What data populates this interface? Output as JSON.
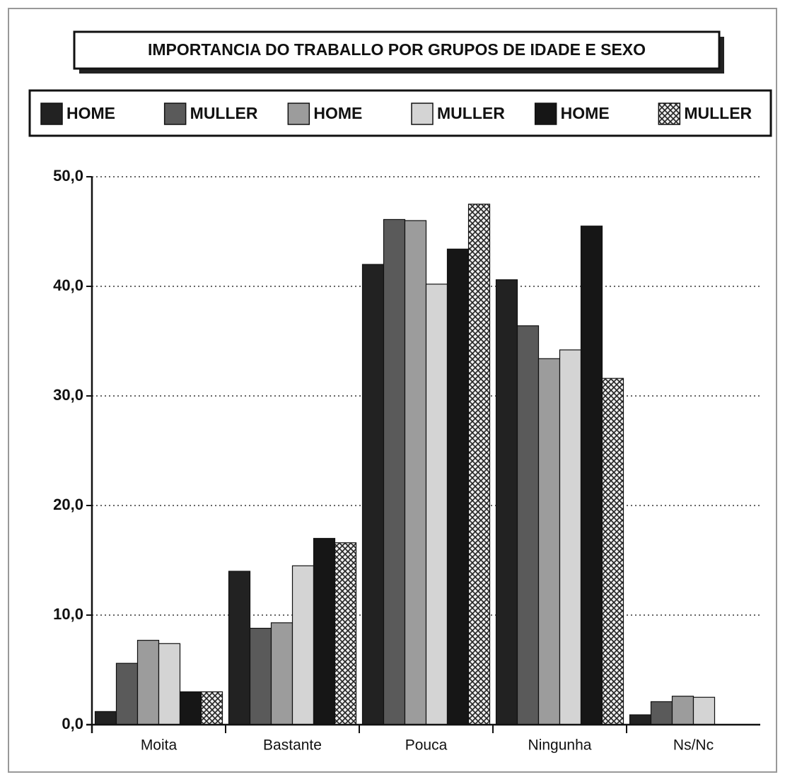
{
  "chart_data": {
    "type": "bar",
    "title": "IMPORTANCIA DO TRABALLO POR GRUPOS DE IDADE E SEXO",
    "categories": [
      "Moita",
      "Bastante",
      "Pouca",
      "Ningunha",
      "Ns/Nc"
    ],
    "series": [
      {
        "name": "HOME",
        "color": "#222222",
        "values": [
          1.2,
          14.0,
          42.0,
          40.6,
          0.9
        ]
      },
      {
        "name": "MULLER",
        "color": "#5a5a5a",
        "values": [
          5.6,
          8.8,
          46.1,
          36.4,
          2.1
        ]
      },
      {
        "name": "HOME",
        "color": "#9c9c9c",
        "values": [
          7.7,
          9.3,
          46.0,
          33.4,
          2.6
        ]
      },
      {
        "name": "MULLER",
        "color": "#d4d4d4",
        "values": [
          7.4,
          14.5,
          40.2,
          34.2,
          2.5
        ]
      },
      {
        "name": "HOME",
        "color": "#161616",
        "values": [
          3.0,
          17.0,
          43.4,
          45.5,
          null
        ]
      },
      {
        "name": "MULLER",
        "color": "#777777",
        "pattern": "crosshatch",
        "values": [
          3.0,
          16.6,
          47.5,
          31.6,
          null
        ]
      }
    ],
    "ylim": [
      0,
      50
    ],
    "yticks": [
      {
        "value": 0,
        "label": "0,0"
      },
      {
        "value": 10,
        "label": "10,0"
      },
      {
        "value": 20,
        "label": "20,0"
      },
      {
        "value": 30,
        "label": "30,0"
      },
      {
        "value": 40,
        "label": "40,0"
      },
      {
        "value": 50,
        "label": "50,0"
      }
    ],
    "grid": true
  }
}
